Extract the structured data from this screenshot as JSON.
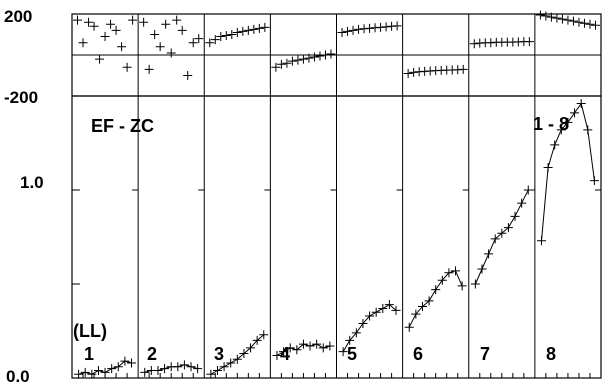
{
  "chart_data": {
    "type": "scatter",
    "title": "",
    "annotations": {
      "baseline": "EF - ZC",
      "total": "1 - 8",
      "series_unit": "(LL)"
    },
    "top_panel": {
      "ylim": [
        -200,
        200
      ],
      "yticks": [
        "200",
        "-200"
      ],
      "reference_line": 0
    },
    "main_panel": {
      "ylim": [
        0.0,
        1.5
      ],
      "yticks": [
        "1.0",
        "0.0"
      ]
    },
    "panel_labels": [
      "1",
      "2",
      "3",
      "4",
      "5",
      "6",
      "7",
      "8"
    ],
    "main_series": [
      {
        "label": "1",
        "x": [
          0.1,
          0.2,
          0.3,
          0.4,
          0.5,
          0.6,
          0.7,
          0.8,
          0.9
        ],
        "y": [
          0.02,
          0.03,
          0.02,
          0.04,
          0.03,
          0.05,
          0.06,
          0.09,
          0.08
        ]
      },
      {
        "label": "2",
        "x": [
          0.1,
          0.2,
          0.3,
          0.4,
          0.5,
          0.6,
          0.7,
          0.8,
          0.9
        ],
        "y": [
          0.03,
          0.04,
          0.04,
          0.05,
          0.06,
          0.06,
          0.07,
          0.06,
          0.05
        ]
      },
      {
        "label": "3",
        "x": [
          0.1,
          0.2,
          0.3,
          0.4,
          0.5,
          0.6,
          0.7,
          0.8,
          0.9
        ],
        "y": [
          0.02,
          0.04,
          0.06,
          0.08,
          0.1,
          0.13,
          0.16,
          0.2,
          0.23
        ]
      },
      {
        "label": "4",
        "x": [
          0.1,
          0.2,
          0.3,
          0.4,
          0.5,
          0.6,
          0.7,
          0.8,
          0.9
        ],
        "y": [
          0.12,
          0.14,
          0.16,
          0.15,
          0.18,
          0.17,
          0.18,
          0.16,
          0.17
        ]
      },
      {
        "label": "5",
        "x": [
          0.1,
          0.2,
          0.3,
          0.4,
          0.5,
          0.6,
          0.7,
          0.8,
          0.9
        ],
        "y": [
          0.14,
          0.2,
          0.24,
          0.29,
          0.33,
          0.35,
          0.37,
          0.39,
          0.36
        ]
      },
      {
        "label": "6",
        "x": [
          0.1,
          0.2,
          0.3,
          0.4,
          0.5,
          0.6,
          0.7,
          0.8,
          0.9
        ],
        "y": [
          0.27,
          0.34,
          0.38,
          0.41,
          0.47,
          0.52,
          0.56,
          0.57,
          0.49
        ]
      },
      {
        "label": "7",
        "x": [
          0.1,
          0.2,
          0.3,
          0.4,
          0.5,
          0.6,
          0.7,
          0.8,
          0.9
        ],
        "y": [
          0.5,
          0.58,
          0.66,
          0.74,
          0.77,
          0.8,
          0.86,
          0.93,
          1.0
        ]
      },
      {
        "label": "8",
        "x": [
          0.1,
          0.2,
          0.3,
          0.4,
          0.5,
          0.6,
          0.7,
          0.8,
          0.9
        ],
        "y": [
          0.73,
          1.12,
          1.24,
          1.32,
          1.36,
          1.41,
          1.46,
          1.32,
          1.05
        ]
      }
    ],
    "top_series": [
      {
        "label": "1",
        "y": [
          170,
          60,
          160,
          140,
          -20,
          90,
          150,
          120,
          40,
          -60,
          170
        ]
      },
      {
        "label": "2",
        "y": [
          160,
          -70,
          100,
          40,
          150,
          10,
          170,
          120,
          -100,
          60,
          80
        ]
      },
      {
        "label": "3",
        "y": [
          60,
          75,
          90,
          95,
          100,
          110,
          115,
          120,
          125,
          130,
          135
        ]
      },
      {
        "label": "4",
        "y": [
          -60,
          -45,
          -40,
          -30,
          -25,
          -20,
          -15,
          -10,
          -5,
          0,
          5
        ]
      },
      {
        "label": "5",
        "y": [
          110,
          115,
          120,
          125,
          128,
          130,
          133,
          135,
          137,
          140,
          142
        ]
      },
      {
        "label": "6",
        "y": [
          -90,
          -85,
          -82,
          -80,
          -78,
          -76,
          -75,
          -74,
          -73,
          -72,
          -70
        ]
      },
      {
        "label": "7",
        "y": [
          55,
          58,
          60,
          60,
          62,
          62,
          63,
          63,
          64,
          65,
          65
        ]
      },
      {
        "label": "8",
        "y": [
          195,
          190,
          185,
          180,
          175,
          170,
          165,
          160,
          155,
          150,
          145
        ]
      }
    ],
    "colors": {
      "ink": "#000000",
      "background": "#ffffff"
    }
  }
}
